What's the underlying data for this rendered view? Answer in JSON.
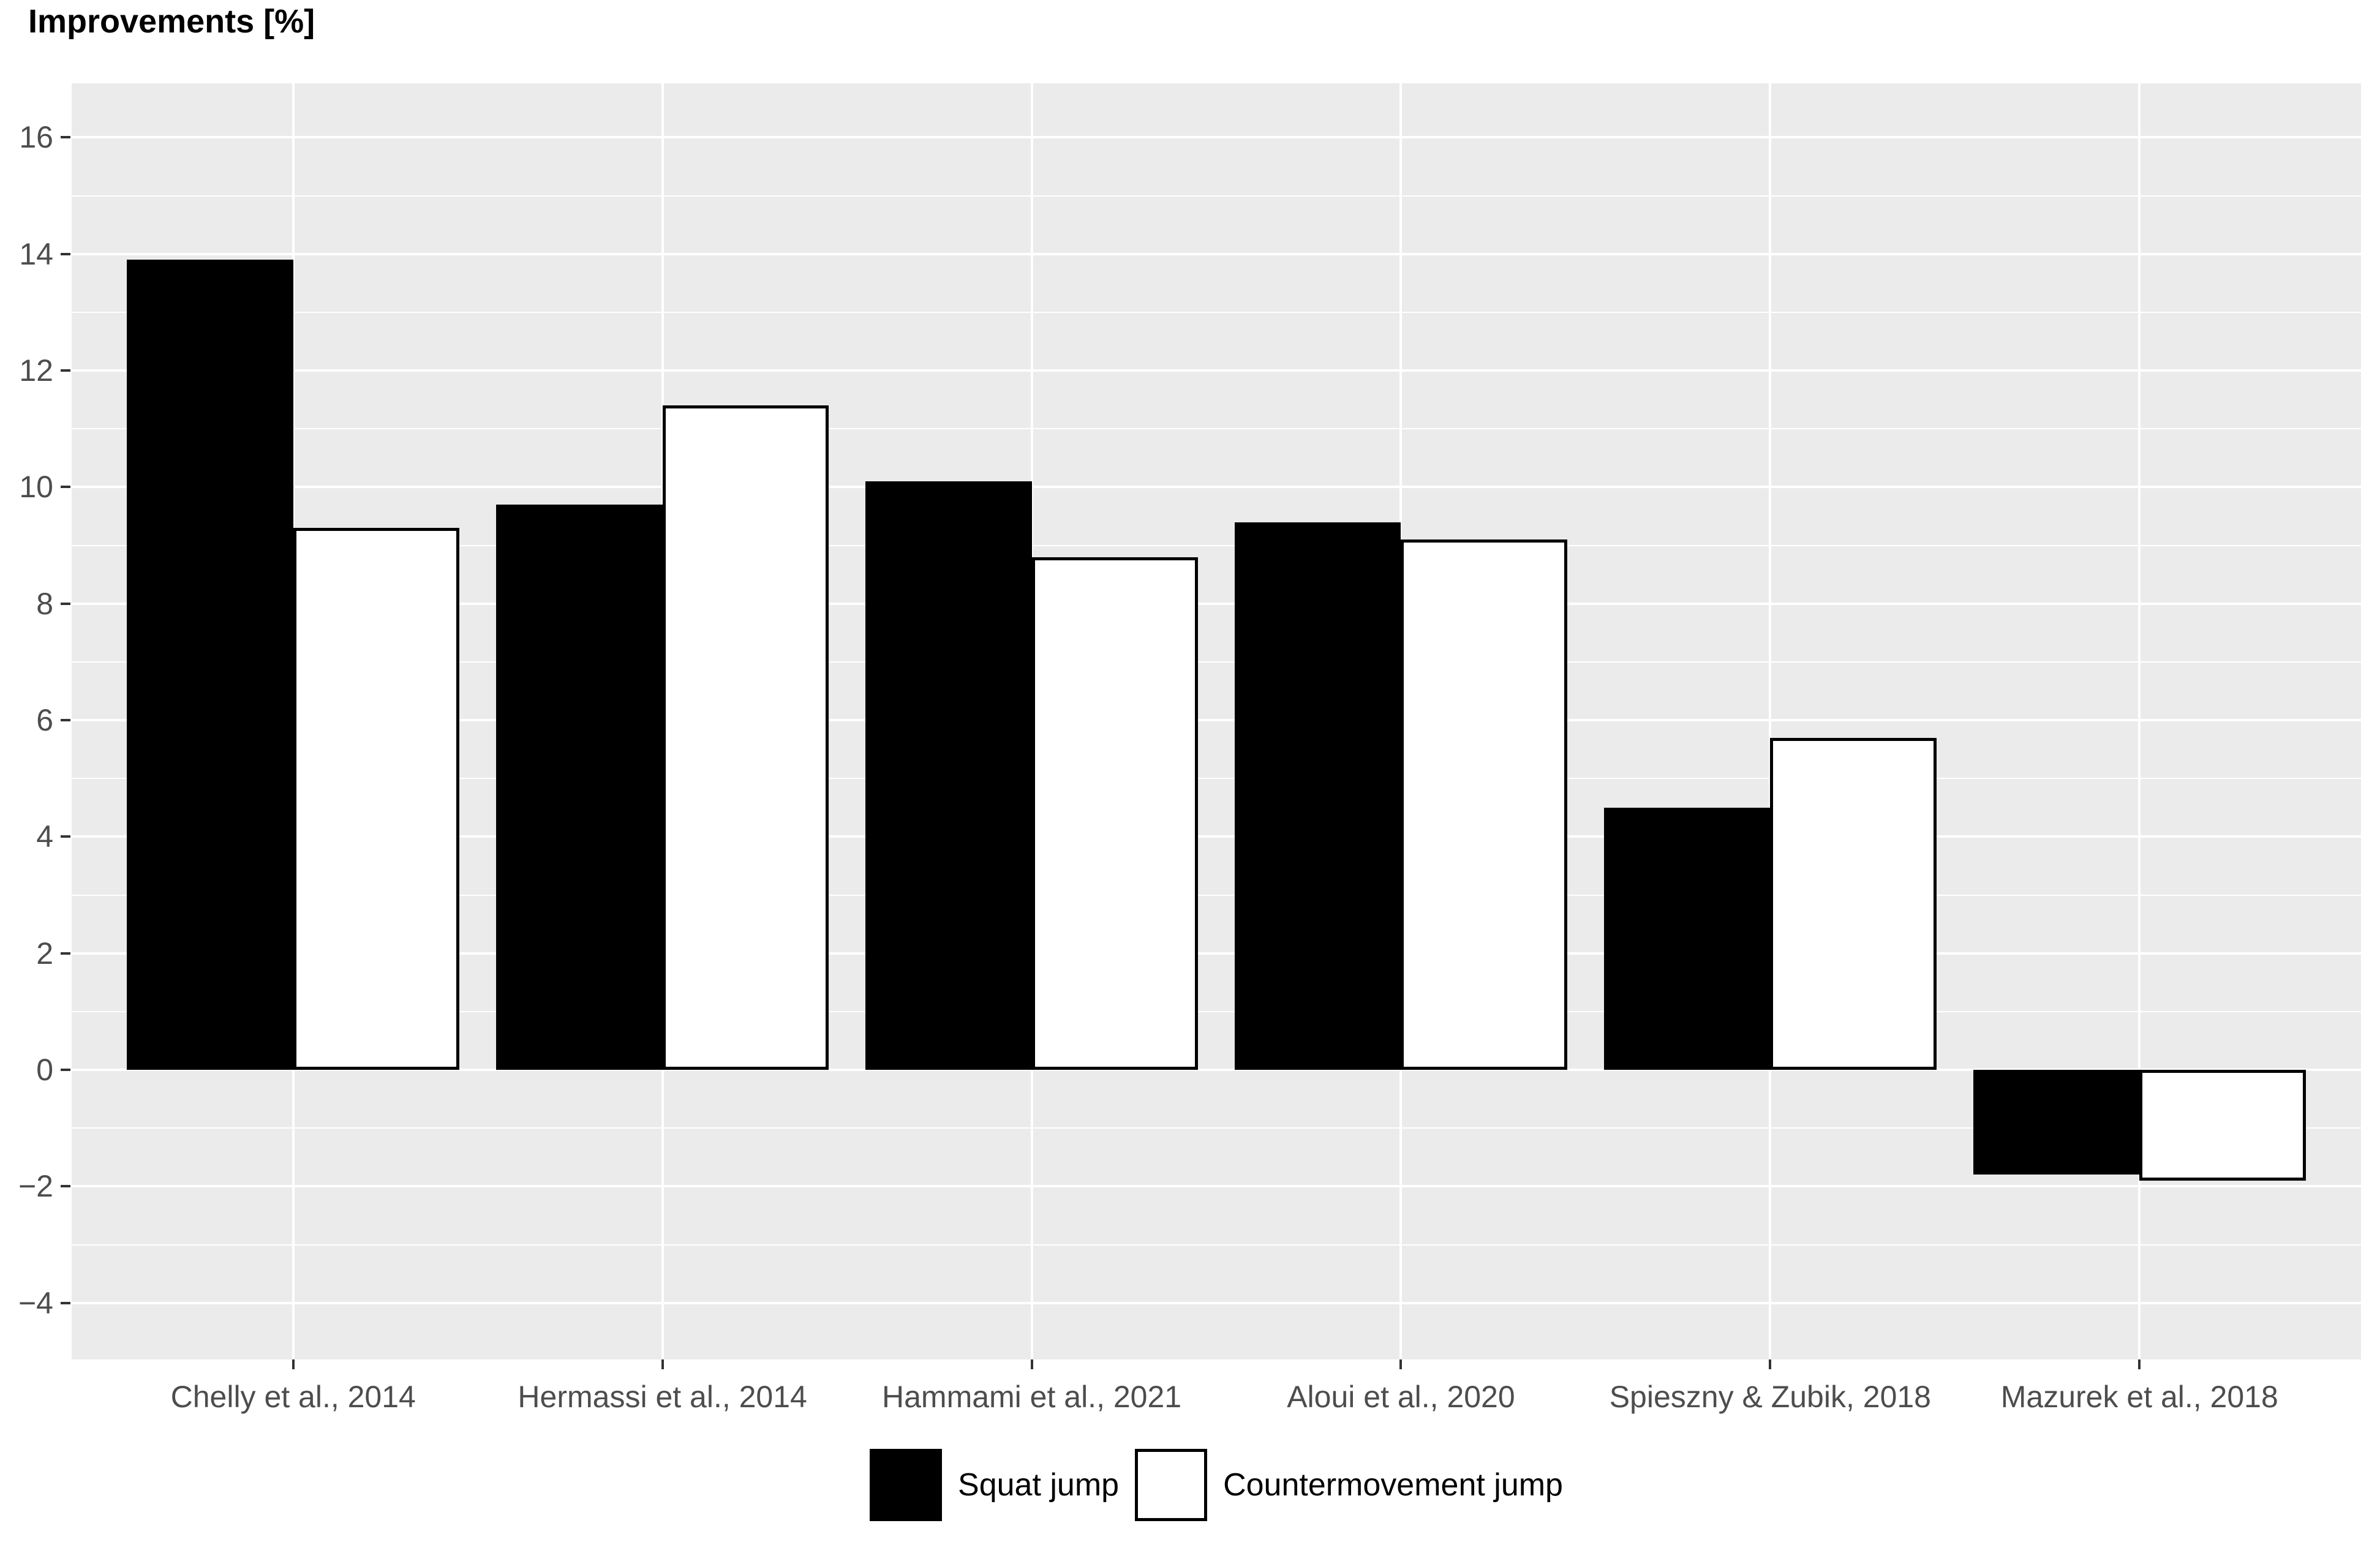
{
  "title": "Improvements [%]",
  "chart_data": {
    "type": "bar",
    "title": "Improvements [%]",
    "orientation": "vertical",
    "grouping": "dodged",
    "categories": [
      "Chelly et al., 2014",
      "Hermassi et al., 2014",
      "Hammami et al., 2021",
      "Aloui et al., 2020",
      "Spieszny & Zubik, 2018",
      "Mazurek et al., 2018"
    ],
    "series": [
      {
        "name": "Squat jump",
        "fill": "#000000",
        "values": [
          13.9,
          9.7,
          10.1,
          9.4,
          4.5,
          -1.8
        ]
      },
      {
        "name": "Countermovement jump",
        "fill": "#FFFFFF",
        "values": [
          9.3,
          11.4,
          8.8,
          9.1,
          5.7,
          -1.9
        ]
      }
    ],
    "xlabel": "",
    "ylabel": "Improvements [%]",
    "ylim": [
      -4.97,
      16.93
    ],
    "y_major_ticks": [
      -4,
      -2,
      0,
      2,
      4,
      6,
      8,
      10,
      12,
      14,
      16
    ],
    "y_tick_labels": [
      "−4",
      "−2",
      "0",
      "2",
      "4",
      "6",
      "8",
      "10",
      "12",
      "14",
      "16"
    ],
    "y_minor_ticks": [
      -3,
      -1,
      1,
      3,
      5,
      7,
      9,
      11,
      13,
      15
    ],
    "grid": "on",
    "legend_position": "bottom-center",
    "colors": {
      "panel_background": "#EBEBEB",
      "gridline": "#FFFFFF",
      "axis_text": "#4D4D4D",
      "tick_mark": "#333333",
      "bar_border": "#000000",
      "title_text": "#000000"
    }
  },
  "legend": {
    "items": [
      {
        "label": "Squat jump",
        "swatch": "black-filled-rect"
      },
      {
        "label": "Countermovement jump",
        "swatch": "white-rect-black-border"
      }
    ]
  }
}
